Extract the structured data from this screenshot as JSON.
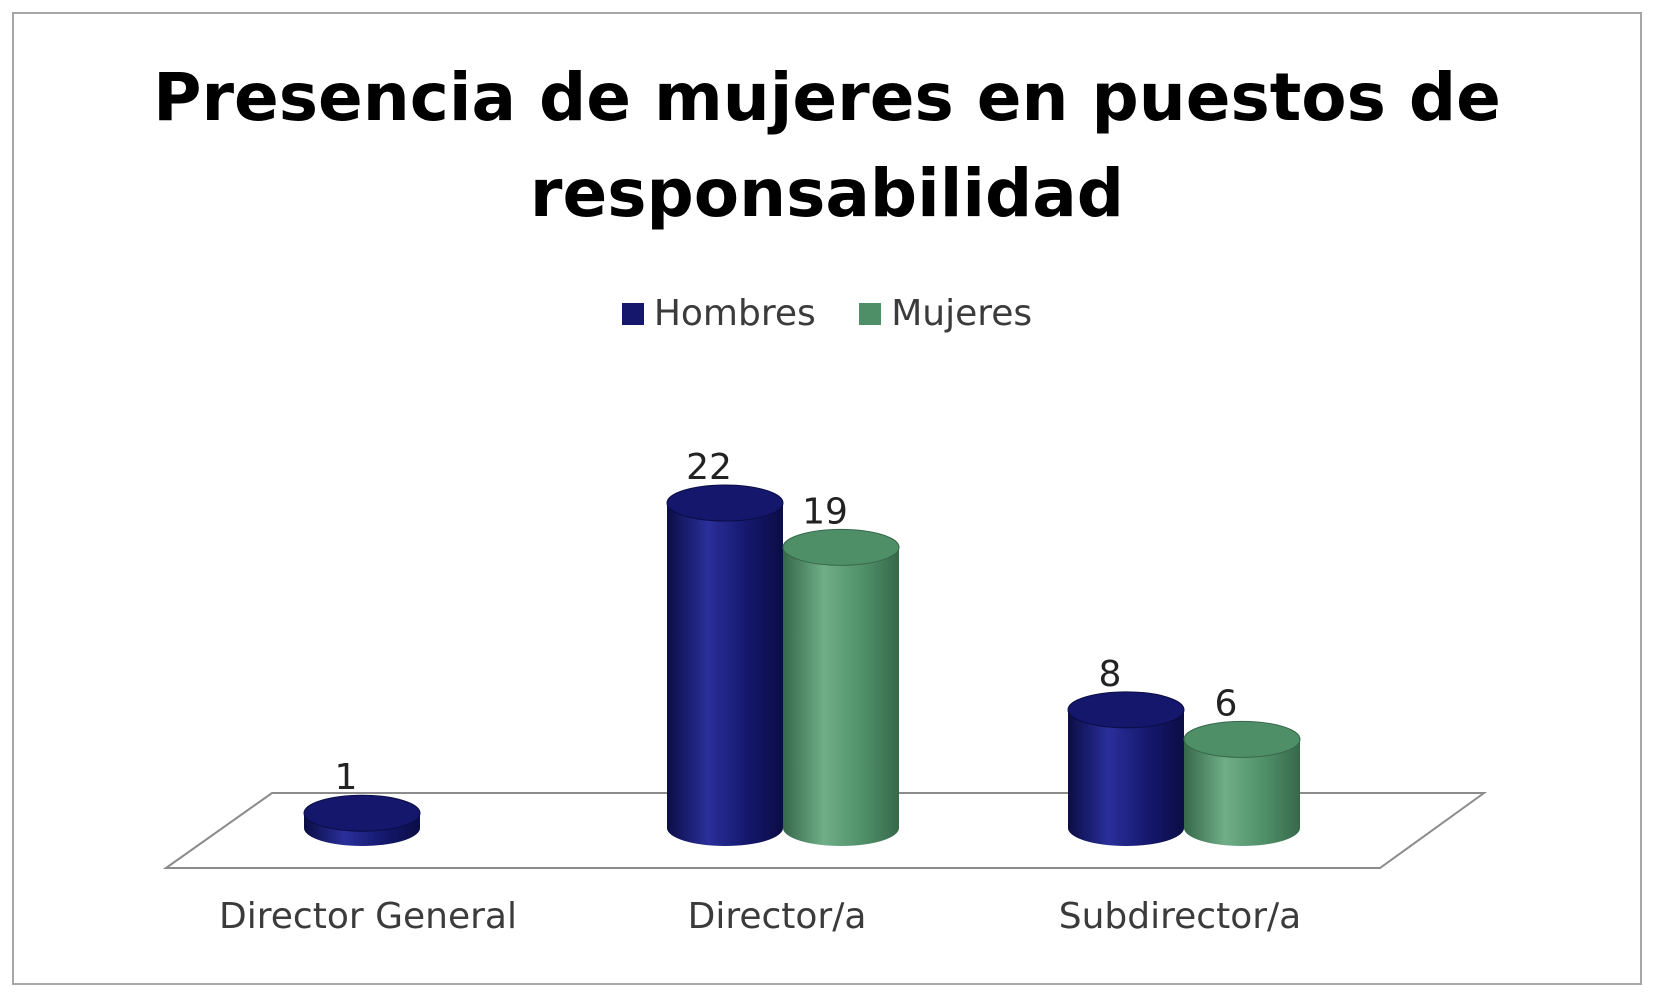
{
  "chart_data": {
    "type": "bar",
    "title_lines": [
      "Presencia de mujeres en puestos de",
      "responsabilidad"
    ],
    "categories": [
      "Director General",
      "Director/a",
      "Subdirector/a"
    ],
    "series": [
      {
        "name": "Hombres",
        "values": [
          1,
          22,
          8
        ],
        "color": "#14176b",
        "color_light": "#2a2f9a",
        "color_dark": "#0b0d45"
      },
      {
        "name": "Mujeres",
        "values": [
          null,
          19,
          6
        ],
        "color": "#4f8f68",
        "color_light": "#6fae87",
        "color_dark": "#36684a"
      }
    ],
    "value_labels": [
      "1",
      "22",
      "19",
      "8",
      "6"
    ],
    "legend_position": "top",
    "grid": false,
    "ylim": [
      0,
      22
    ]
  }
}
